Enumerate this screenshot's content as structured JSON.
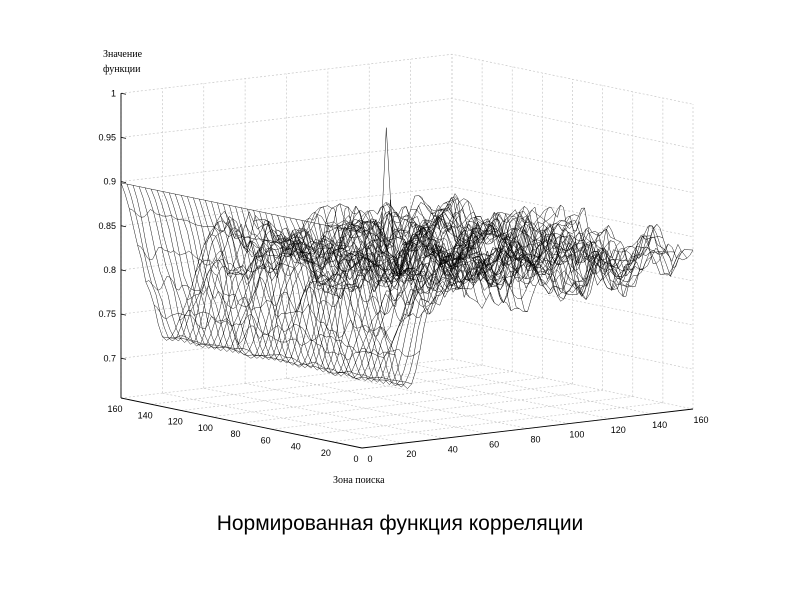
{
  "caption": "Нормированная функция корреляции",
  "chart_data": {
    "type": "surface",
    "zlabel_line1": "Значение",
    "zlabel_line2": "функции",
    "xlabel": "Зона поиска",
    "zticks": [
      "1",
      "0.95",
      "0.9",
      "0.85",
      "0.8",
      "0.75",
      "0.7"
    ],
    "zlim": [
      0.7,
      1.0
    ],
    "left_ticks": [
      "160",
      "140",
      "120",
      "100",
      "80",
      "60",
      "40",
      "20",
      "0"
    ],
    "right_ticks": [
      "0",
      "20",
      "40",
      "60",
      "80",
      "100",
      "120",
      "140",
      "160"
    ],
    "xlim": [
      0,
      160
    ],
    "ylim": [
      0,
      160
    ],
    "surface": {
      "baseline": 0.82,
      "peak": {
        "x": 70,
        "y": 80,
        "z": 0.97
      },
      "edge_plateau": 0.9,
      "trough_min": 0.71
    },
    "grid": true,
    "colors": {
      "mesh": "#000000",
      "grid": "#c8c8c8",
      "background": "#ffffff"
    }
  }
}
